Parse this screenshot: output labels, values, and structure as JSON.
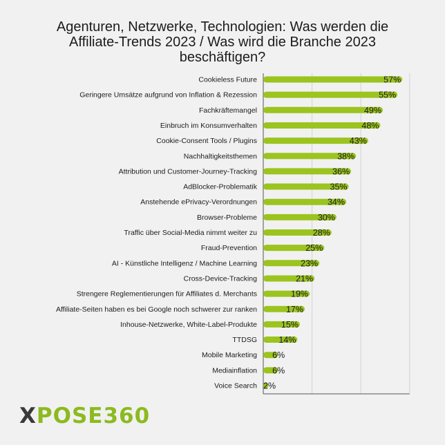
{
  "title_lines": [
    "Agenturen, Netzwerke, Technologien: Was werden die",
    "Affiliate-Trends 2023 / Was wird die Branche 2023",
    "beschäftigen?"
  ],
  "logo": {
    "x": "X",
    "rest": "POSE360"
  },
  "colors": {
    "bar": "#9bc41f",
    "text": "#1b1b1b",
    "axis": "#555555"
  },
  "chart_data": {
    "type": "bar",
    "orientation": "horizontal",
    "title": "Agenturen, Netzwerke, Technologien: Was werden die Affiliate-Trends 2023 / Was wird die Branche 2023 beschäftigen?",
    "unit": "%",
    "xlim": [
      0,
      60
    ],
    "grid": true,
    "categories": [
      "Cookieless Future",
      "Geringere Umsätze aufgrund von Inflation & Rezession",
      "Fachkräftemangel",
      "Einbruch im Konsumverhalten",
      "Cookie-Consent Tools / Plugins",
      "Nachhaltigkeitsthemen",
      "Attribution und Customer-Journey-Tracking",
      "AdBlocker-Problematik",
      "Anstehende ePrivacy-Verordnungen",
      "Browser-Probleme",
      "Traffic über Social-Media nimmt weiter zu",
      "Fraud-Prevention",
      "AI - Künstliche Intelligenz / Machine Learning",
      "Cross-Device-Tracking",
      "Strengere Reglementierungen für Affiliates d. Merchants",
      "Affiliate-Seiten haben es bei Google noch schwerer zur ranken",
      "Inhouse-Netzwerke, White-Label-Produkte",
      "TTDSG",
      "Mobile Marketing",
      "Mediainflation",
      "Voice Search"
    ],
    "values": [
      57,
      55,
      49,
      48,
      43,
      38,
      36,
      35,
      34,
      30,
      28,
      25,
      23,
      21,
      19,
      17,
      15,
      14,
      6,
      6,
      2
    ],
    "value_labels": [
      "57%",
      "55%",
      "49%",
      "48%",
      "43%",
      "38%",
      "36%",
      "35%",
      "34%",
      "30%",
      "28%",
      "25%",
      "23%",
      "21%",
      "19%",
      "17%",
      "15%",
      "14%",
      "6%",
      "6%",
      "2%"
    ]
  }
}
